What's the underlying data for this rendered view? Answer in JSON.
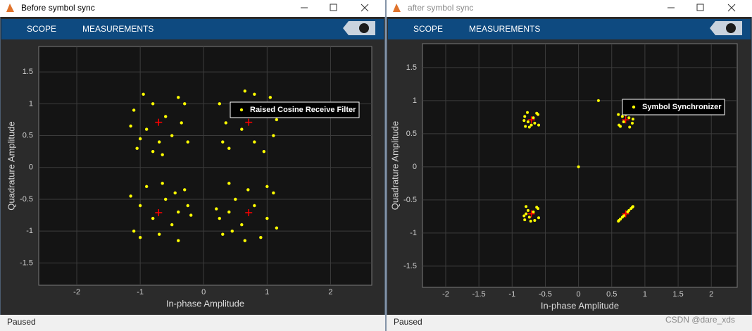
{
  "windows": [
    {
      "title": "Before symbol sync",
      "tabs": [
        "SCOPE",
        "MEASUREMENTS"
      ],
      "status": "Paused",
      "chart_data": {
        "type": "scatter",
        "xlabel": "In-phase Amplitude",
        "ylabel": "Quadrature Amplitude",
        "xlim": [
          -2.6,
          2.65
        ],
        "ylim": [
          -1.85,
          1.9
        ],
        "xticks": [
          -2,
          -1,
          0,
          1,
          2
        ],
        "yticks": [
          -1.5,
          -1,
          -0.5,
          0,
          0.5,
          1,
          1.5
        ],
        "grid": true,
        "legend": "northeast",
        "series": [
          {
            "name": "Raised Cosine Receive Filter",
            "color": "#ffff00",
            "x": [
              0.25,
              0.4,
              0.8,
              1.1,
              0.9,
              0.6,
              1.05,
              0.3,
              0.7,
              0.95,
              0.5,
              1.15,
              0.35,
              0.8,
              0.65,
              1.0,
              -0.25,
              -0.4,
              -0.8,
              -1.1,
              -0.9,
              -0.6,
              -1.05,
              -0.3,
              -0.7,
              -0.95,
              -0.5,
              -1.15,
              -0.35,
              -0.8,
              -0.65,
              -1.0,
              -0.4,
              -1.1,
              -0.25,
              -0.9,
              -0.6,
              -0.8,
              -0.3,
              -1.0,
              -0.4,
              -1.15,
              -0.5,
              -0.65,
              -0.7,
              -1.0,
              -0.2,
              -0.45,
              0.4,
              1.1,
              0.25,
              0.9,
              0.6,
              0.8,
              0.3,
              1.0,
              0.4,
              1.15,
              0.5,
              0.65,
              0.7,
              1.0,
              0.2,
              0.45
            ],
            "y": [
              1.0,
              0.3,
              1.15,
              0.5,
              0.8,
              0.6,
              1.1,
              0.4,
              1.0,
              0.25,
              0.9,
              0.75,
              0.7,
              0.4,
              1.2,
              0.95,
              0.4,
              1.1,
              0.25,
              0.9,
              0.6,
              0.8,
              0.3,
              1.0,
              0.4,
              1.15,
              0.5,
              0.65,
              0.7,
              1.0,
              0.2,
              0.45,
              -1.15,
              -1.0,
              -0.6,
              -0.3,
              -0.5,
              -0.8,
              -0.35,
              -1.1,
              -0.7,
              -0.45,
              -0.9,
              -0.25,
              -1.05,
              -0.6,
              -0.75,
              -0.4,
              -0.25,
              -0.4,
              -0.8,
              -1.1,
              -0.9,
              -0.6,
              -1.05,
              -0.3,
              -0.7,
              -0.95,
              -0.5,
              -1.15,
              -0.35,
              -0.8,
              -0.65,
              -1.0
            ]
          }
        ],
        "reference": {
          "color": "#ff0000",
          "x": [
            0.71,
            -0.71,
            -0.71,
            0.71
          ],
          "y": [
            0.71,
            0.71,
            -0.71,
            -0.71
          ]
        }
      }
    },
    {
      "title": "after symbol sync",
      "tabs": [
        "SCOPE",
        "MEASUREMENTS"
      ],
      "status": "Paused",
      "chart_data": {
        "type": "scatter",
        "xlabel": "In-phase Amplitude",
        "ylabel": "Quadrature Amplitude",
        "xlim": [
          -2.35,
          2.39
        ],
        "ylim": [
          -1.82,
          1.86
        ],
        "xticks": [
          -2,
          -1.5,
          -1,
          -0.5,
          0,
          0.5,
          1,
          1.5,
          2
        ],
        "yticks": [
          -1.5,
          -1,
          -0.5,
          0,
          0.5,
          1,
          1.5
        ],
        "grid": true,
        "legend": "northeast",
        "series": [
          {
            "name": "Symbol Synchronizer",
            "color": "#ffff00",
            "x": [
              0.6,
              0.63,
              0.74,
              0.81,
              0.76,
              0.68,
              0.8,
              0.61,
              0.71,
              0.77,
              0.66,
              0.82,
              -0.6,
              -0.63,
              -0.74,
              -0.81,
              -0.76,
              -0.68,
              -0.8,
              -0.61,
              -0.71,
              -0.77,
              -0.66,
              -0.82,
              -0.79,
              -0.61,
              -0.82,
              -0.66,
              -0.74,
              -0.68,
              -0.81,
              -0.63,
              -0.79,
              -0.6,
              -0.76,
              -0.72,
              0.63,
              0.81,
              0.6,
              0.76,
              0.68,
              0.74,
              0.61,
              0.79,
              0.63,
              0.82,
              0.66,
              0.7,
              0,
              0.3
            ],
            "y": [
              0.79,
              0.61,
              0.82,
              0.66,
              0.74,
              0.68,
              0.81,
              0.63,
              0.79,
              0.6,
              0.76,
              0.72,
              0.63,
              0.81,
              0.6,
              0.76,
              0.68,
              0.74,
              0.61,
              0.79,
              0.63,
              0.82,
              0.66,
              0.7,
              -0.6,
              -0.63,
              -0.74,
              -0.81,
              -0.76,
              -0.68,
              -0.8,
              -0.61,
              -0.71,
              -0.77,
              -0.66,
              -0.82,
              -0.79,
              -0.61,
              -0.82,
              -0.66,
              -0.74,
              -0.68,
              -0.81,
              -0.63,
              -0.79,
              -0.6,
              -0.76,
              -0.72,
              0,
              1.0
            ]
          }
        ],
        "reference": {
          "color": "#ff0000",
          "x": [
            0.71,
            -0.71,
            -0.71,
            0.71
          ],
          "y": [
            0.71,
            0.71,
            -0.71,
            -0.71
          ]
        }
      }
    }
  ],
  "watermark": "CSDN @dare_xds"
}
